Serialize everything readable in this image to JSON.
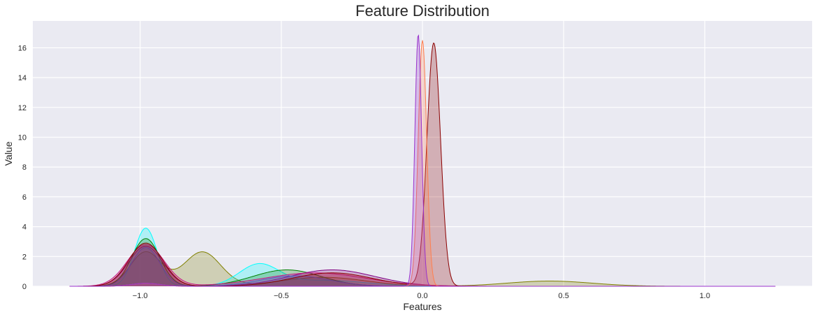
{
  "chart_data": {
    "type": "area",
    "title": "Feature Distribution",
    "xlabel": "Features",
    "ylabel": "Value",
    "xlim": [
      -1.38,
      1.38
    ],
    "ylim": [
      0,
      17.8
    ],
    "x_ticks": [
      -1.0,
      -0.5,
      0.0,
      0.5,
      1.0
    ],
    "x_tick_labels": [
      "−1.0",
      "−0.5",
      "0.0",
      "0.5",
      "1.0"
    ],
    "y_ticks": [
      0,
      2,
      4,
      6,
      8,
      10,
      12,
      14,
      16
    ],
    "y_tick_labels": [
      "0",
      "2",
      "4",
      "6",
      "8",
      "10",
      "12",
      "14",
      "16"
    ],
    "grid": true,
    "legend": "none",
    "background": "#eaeaf2",
    "grid_color": "#ffffff",
    "series": [
      {
        "color": "#808000",
        "peaks": [
          {
            "mu": -0.98,
            "sigma": 0.055,
            "h": 2.3
          },
          {
            "mu": -0.78,
            "sigma": 0.065,
            "h": 2.3
          },
          {
            "mu": -0.35,
            "sigma": 0.15,
            "h": 0.6
          },
          {
            "mu": 0.45,
            "sigma": 0.15,
            "h": 0.35
          }
        ]
      },
      {
        "color": "#00ffff",
        "peaks": [
          {
            "mu": -0.98,
            "sigma": 0.04,
            "h": 3.9
          },
          {
            "mu": -0.58,
            "sigma": 0.07,
            "h": 1.4
          },
          {
            "mu": -0.35,
            "sigma": 0.15,
            "h": 0.4
          }
        ]
      },
      {
        "color": "#008000",
        "peaks": [
          {
            "mu": -0.98,
            "sigma": 0.05,
            "h": 3.2
          },
          {
            "mu": -0.48,
            "sigma": 0.12,
            "h": 1.1
          }
        ]
      },
      {
        "color": "#800080",
        "peaks": [
          {
            "mu": -0.98,
            "sigma": 0.06,
            "h": 2.7
          },
          {
            "mu": -0.32,
            "sigma": 0.15,
            "h": 1.1
          }
        ]
      },
      {
        "color": "#4169e1",
        "peaks": [
          {
            "mu": -0.98,
            "sigma": 0.05,
            "h": 2.6
          },
          {
            "mu": -0.45,
            "sigma": 0.12,
            "h": 0.7
          }
        ]
      },
      {
        "color": "#c71585",
        "peaks": [
          {
            "mu": -0.98,
            "sigma": 0.065,
            "h": 2.8
          },
          {
            "mu": -0.38,
            "sigma": 0.18,
            "h": 0.9
          }
        ]
      },
      {
        "color": "#8b0000",
        "peaks": [
          {
            "mu": -0.98,
            "sigma": 0.06,
            "h": 2.9
          },
          {
            "mu": -0.32,
            "sigma": 0.14,
            "h": 0.9
          },
          {
            "mu": 0.04,
            "sigma": 0.024,
            "h": 16.3
          }
        ]
      },
      {
        "color": "#ff7f50",
        "peaks": [
          {
            "mu": 0.0,
            "sigma": 0.015,
            "h": 16.5
          },
          {
            "mu": -0.98,
            "sigma": 0.05,
            "h": 0.2
          }
        ]
      },
      {
        "color": "#9932cc",
        "peaks": [
          {
            "mu": -0.015,
            "sigma": 0.012,
            "h": 16.9
          },
          {
            "mu": -0.98,
            "sigma": 0.05,
            "h": 0.2
          }
        ]
      }
    ]
  }
}
